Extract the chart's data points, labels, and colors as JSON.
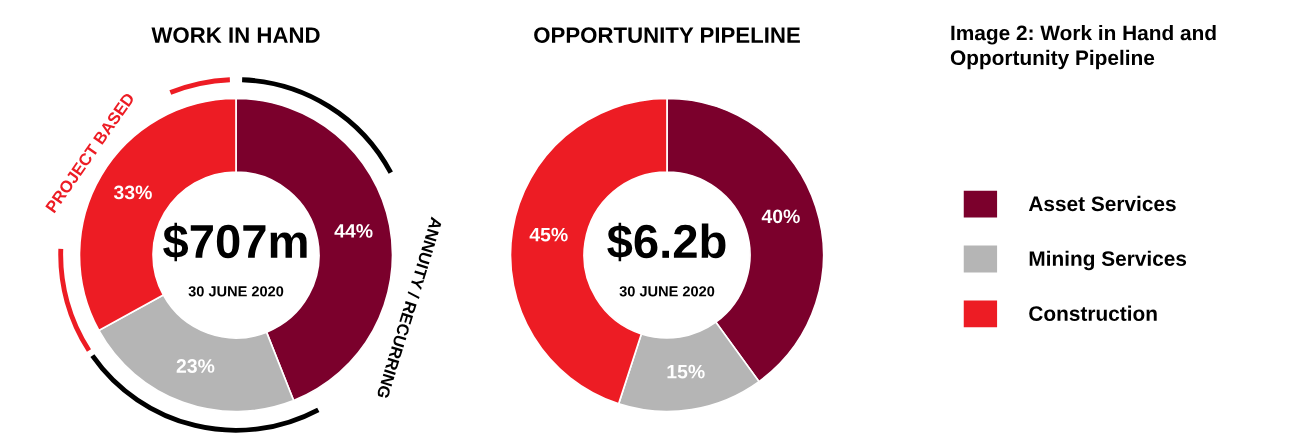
{
  "chart_data": [
    {
      "type": "donut",
      "title": "WORK IN HAND",
      "categories": [
        "Asset Services",
        "Mining Services",
        "Construction"
      ],
      "values": [
        44,
        23,
        33
      ],
      "value_labels": [
        "44%",
        "23%",
        "33%"
      ],
      "colors": [
        "#7b002c",
        "#b5b5b5",
        "#ed1c24"
      ],
      "legend": "right",
      "annotations": [
        "$707m",
        "30 JUNE 2020",
        "PROJECT BASED",
        "ANNUITY / RECURRING"
      ]
    },
    {
      "type": "donut",
      "title": "OPPORTUNITY PIPELINE",
      "categories": [
        null,
        null,
        null
      ],
      "values": [
        40,
        15,
        45
      ],
      "value_labels": [
        "40%",
        "15%",
        "45%"
      ],
      "colors": [
        "#7b002c",
        "#b5b5b5",
        "#ed1c24"
      ],
      "annotations": [
        "$6.2b",
        "30 JUNE 2020",
        "Image 2: Work in Hand and Opportunity Pipeline"
      ]
    }
  ]
}
